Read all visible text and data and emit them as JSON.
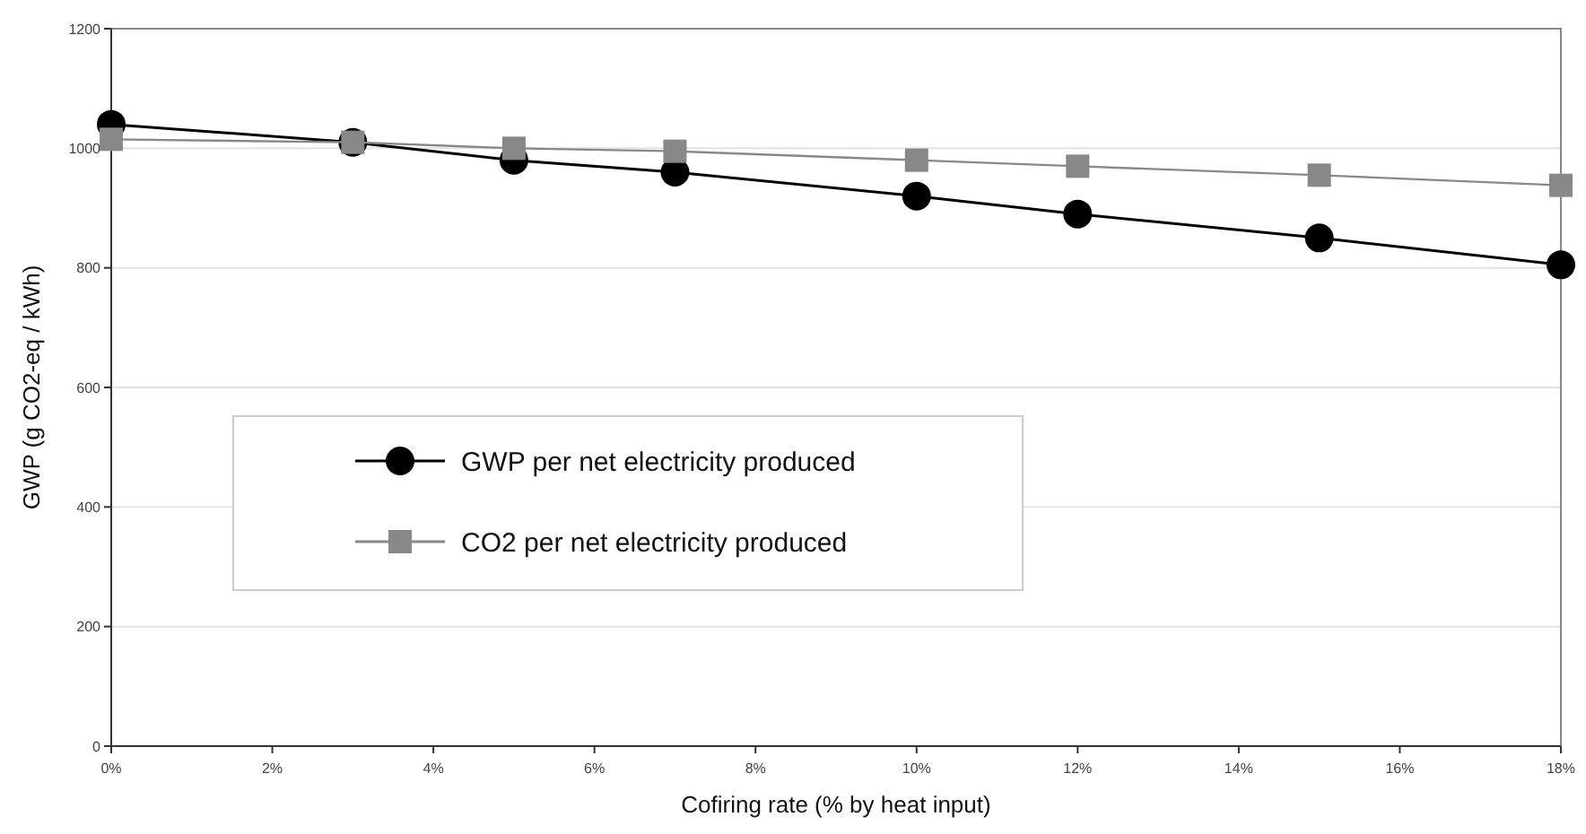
{
  "chart_data": {
    "type": "line",
    "xlabel": "Cofiring rate (% by heat input)",
    "ylabel": "GWP (g CO2-eq / kWh)",
    "x": [
      0,
      3,
      5,
      7,
      10,
      12,
      15,
      18
    ],
    "xlim": [
      0,
      18
    ],
    "xticks": [
      {
        "value": 0,
        "label": "0%"
      },
      {
        "value": 2,
        "label": "2%"
      },
      {
        "value": 4,
        "label": "4%"
      },
      {
        "value": 6,
        "label": "6%"
      },
      {
        "value": 8,
        "label": "8%"
      },
      {
        "value": 10,
        "label": "10%"
      },
      {
        "value": 12,
        "label": "12%"
      },
      {
        "value": 14,
        "label": "14%"
      },
      {
        "value": 16,
        "label": "16%"
      },
      {
        "value": 18,
        "label": "18%"
      }
    ],
    "ylim": [
      0,
      1200
    ],
    "yticks": [
      0,
      200,
      400,
      600,
      800,
      1000,
      1200
    ],
    "grid": "y",
    "legend": "center",
    "series": [
      {
        "name": "GWP per net electricity produced",
        "color": "#000000",
        "marker": "circle",
        "values": [
          1040,
          1010,
          980,
          960,
          920,
          890,
          850,
          805
        ]
      },
      {
        "name": "CO2 per net electricity produced",
        "color": "#888888",
        "marker": "square",
        "values": [
          1015,
          1010,
          1000,
          995,
          980,
          970,
          955,
          938
        ]
      }
    ]
  }
}
